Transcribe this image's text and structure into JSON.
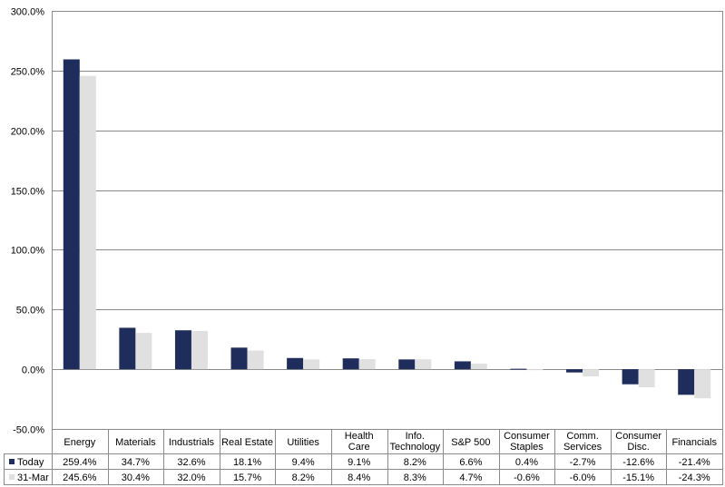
{
  "chart_data": {
    "type": "bar",
    "title": "",
    "xlabel": "",
    "ylabel": "",
    "ylim": [
      -50,
      300
    ],
    "yticks": [
      "300.0%",
      "250.0%",
      "200.0%",
      "150.0%",
      "100.0%",
      "50.0%",
      "0.0%",
      "-50.0%"
    ],
    "ytick_values": [
      300,
      250,
      200,
      150,
      100,
      50,
      0,
      -50
    ],
    "grid": true,
    "legend": "data-table",
    "categories": [
      [
        "Energy"
      ],
      [
        "Materials"
      ],
      [
        "Industrials"
      ],
      [
        "Real Estate"
      ],
      [
        "Utilities"
      ],
      [
        "Health",
        "Care"
      ],
      [
        "Info.",
        "Technology"
      ],
      [
        "S&P 500"
      ],
      [
        "Consumer",
        "Staples"
      ],
      [
        "Comm.",
        "Services"
      ],
      [
        "Consumer",
        "Disc."
      ],
      [
        "Financials"
      ]
    ],
    "series": [
      {
        "name": "Today",
        "color": "#1f2d5c",
        "values": [
          259.4,
          34.7,
          32.6,
          18.1,
          9.4,
          9.1,
          8.2,
          6.6,
          0.4,
          -2.7,
          -12.6,
          -21.4
        ],
        "labels": [
          "259.4%",
          "34.7%",
          "32.6%",
          "18.1%",
          "9.4%",
          "9.1%",
          "8.2%",
          "6.6%",
          "0.4%",
          "-2.7%",
          "-12.6%",
          "-21.4%"
        ]
      },
      {
        "name": "31-Mar",
        "color": "#e0e0e0",
        "values": [
          245.6,
          30.4,
          32.0,
          15.7,
          8.2,
          8.4,
          8.3,
          4.7,
          -0.6,
          -6.0,
          -15.1,
          -24.3
        ],
        "labels": [
          "245.6%",
          "30.4%",
          "32.0%",
          "15.7%",
          "8.2%",
          "8.4%",
          "8.3%",
          "4.7%",
          "-0.6%",
          "-6.0%",
          "-15.1%",
          "-24.3%"
        ]
      }
    ]
  }
}
